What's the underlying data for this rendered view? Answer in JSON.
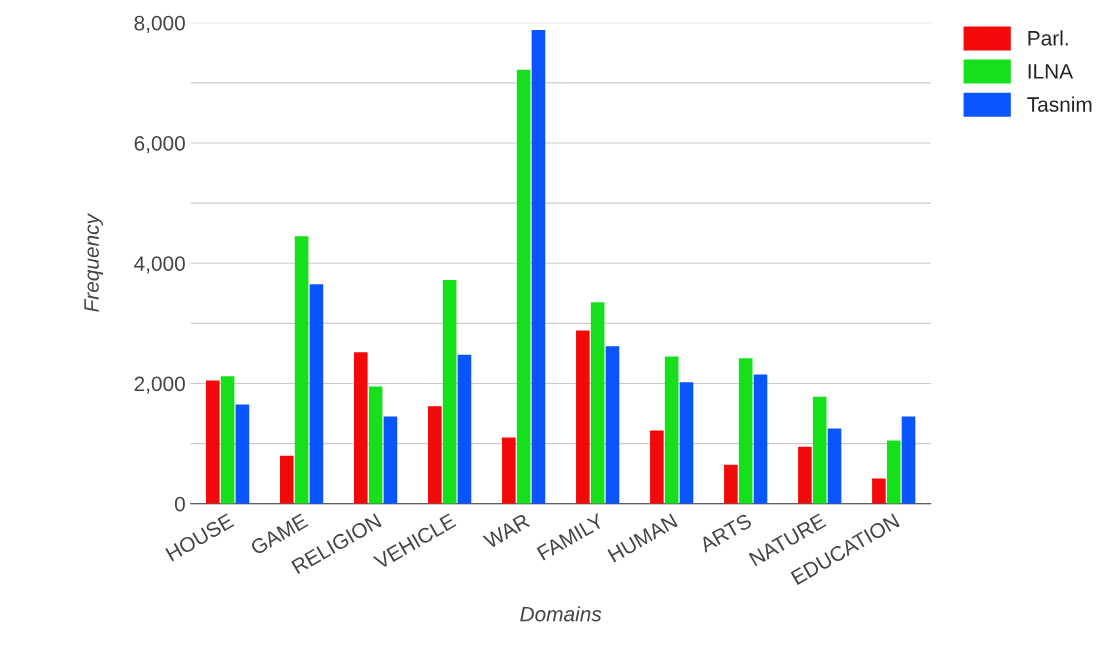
{
  "chart_data": {
    "type": "bar",
    "xlabel": "Domains",
    "ylabel": "Frequency",
    "categories": [
      "HOUSE",
      "GAME",
      "RELIGION",
      "VEHICLE",
      "WAR",
      "FAMILY",
      "HUMAN",
      "ARTS",
      "NATURE",
      "EDUCATION"
    ],
    "series": [
      {
        "name": "Parl.",
        "color": "#f20a0a",
        "values": [
          2050,
          800,
          2520,
          1620,
          1100,
          2880,
          1220,
          650,
          950,
          420
        ]
      },
      {
        "name": "ILNA",
        "color": "#16e01c",
        "values": [
          2120,
          4450,
          1950,
          3720,
          7220,
          3350,
          2450,
          2420,
          1780,
          1050
        ]
      },
      {
        "name": "Tasnim",
        "color": "#0a55ff",
        "values": [
          1650,
          3650,
          1450,
          2480,
          7880,
          2620,
          2020,
          2150,
          1250,
          1450
        ]
      }
    ],
    "ylim": [
      0,
      8000
    ],
    "yticks": [
      {
        "value": 0,
        "label": "0"
      },
      {
        "value": 1000,
        "label": null
      },
      {
        "value": 2000,
        "label": "2,000"
      },
      {
        "value": 3000,
        "label": null
      },
      {
        "value": 4000,
        "label": "4,000"
      },
      {
        "value": 5000,
        "label": null
      },
      {
        "value": 6000,
        "label": "6,000"
      },
      {
        "value": 7000,
        "label": null
      },
      {
        "value": 8000,
        "label": "8,000"
      }
    ],
    "grid": "y",
    "legend": "top right"
  }
}
